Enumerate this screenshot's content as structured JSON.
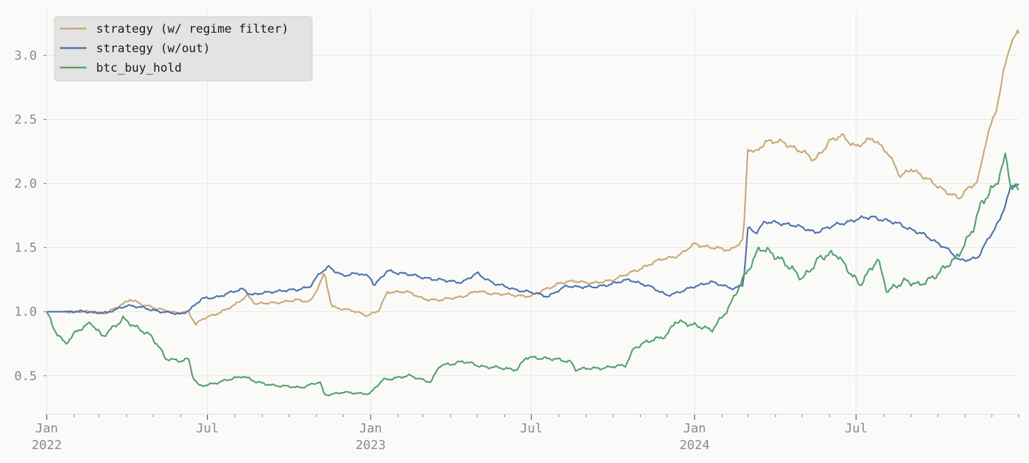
{
  "chart_data": {
    "type": "line",
    "title": "",
    "xlabel": "",
    "ylabel": "",
    "x_range": [
      "2022-01-01",
      "2024-12-31"
    ],
    "ylim": [
      0.2,
      3.35
    ],
    "grid": true,
    "legend_position": "top-left",
    "y_ticks": [
      0.5,
      1.0,
      1.5,
      2.0,
      2.5,
      3.0
    ],
    "y_tick_labels": [
      "0.5",
      "1.0",
      "1.5",
      "2.0",
      "2.5",
      "3.0"
    ],
    "x_major_ticks": [
      {
        "date": "2022-01-01",
        "line1": "Jan",
        "line2": "2022"
      },
      {
        "date": "2022-07-01",
        "line1": "Jul",
        "line2": ""
      },
      {
        "date": "2023-01-01",
        "line1": "Jan",
        "line2": "2023"
      },
      {
        "date": "2023-07-01",
        "line1": "Jul",
        "line2": ""
      },
      {
        "date": "2024-01-01",
        "line1": "Jan",
        "line2": "2024"
      },
      {
        "date": "2024-07-01",
        "line1": "Jul",
        "line2": ""
      }
    ],
    "series": [
      {
        "name": "strategy (w/ regime filter)",
        "color": "#c9a874",
        "points": [
          [
            "2022-01-01",
            1.0
          ],
          [
            "2022-02-15",
            1.0
          ],
          [
            "2022-03-10",
            0.99
          ],
          [
            "2022-03-28",
            1.06
          ],
          [
            "2022-04-05",
            1.1
          ],
          [
            "2022-04-20",
            1.05
          ],
          [
            "2022-05-10",
            1.02
          ],
          [
            "2022-05-25",
            0.99
          ],
          [
            "2022-06-10",
            1.0
          ],
          [
            "2022-06-18",
            0.9
          ],
          [
            "2022-06-25",
            0.94
          ],
          [
            "2022-07-10",
            0.98
          ],
          [
            "2022-08-01",
            1.05
          ],
          [
            "2022-08-15",
            1.13
          ],
          [
            "2022-08-25",
            1.06
          ],
          [
            "2022-09-15",
            1.07
          ],
          [
            "2022-10-10",
            1.09
          ],
          [
            "2022-10-25",
            1.08
          ],
          [
            "2022-11-05",
            1.22
          ],
          [
            "2022-11-10",
            1.3
          ],
          [
            "2022-11-18",
            1.04
          ],
          [
            "2022-12-10",
            1.01
          ],
          [
            "2022-12-28",
            0.97
          ],
          [
            "2023-01-10",
            1.01
          ],
          [
            "2023-01-20",
            1.15
          ],
          [
            "2023-02-10",
            1.16
          ],
          [
            "2023-03-01",
            1.1
          ],
          [
            "2023-03-20",
            1.09
          ],
          [
            "2023-04-15",
            1.12
          ],
          [
            "2023-05-01",
            1.16
          ],
          [
            "2023-05-20",
            1.14
          ],
          [
            "2023-06-10",
            1.13
          ],
          [
            "2023-07-01",
            1.12
          ],
          [
            "2023-07-15",
            1.17
          ],
          [
            "2023-08-01",
            1.22
          ],
          [
            "2023-08-20",
            1.24
          ],
          [
            "2023-09-10",
            1.22
          ],
          [
            "2023-10-01",
            1.25
          ],
          [
            "2023-10-20",
            1.3
          ],
          [
            "2023-11-05",
            1.35
          ],
          [
            "2023-11-25",
            1.41
          ],
          [
            "2023-12-15",
            1.44
          ],
          [
            "2024-01-01",
            1.53
          ],
          [
            "2024-01-20",
            1.5
          ],
          [
            "2024-02-10",
            1.48
          ],
          [
            "2024-02-25",
            1.56
          ],
          [
            "2024-03-01",
            2.27
          ],
          [
            "2024-03-10",
            2.24
          ],
          [
            "2024-03-20",
            2.33
          ],
          [
            "2024-04-10",
            2.32
          ],
          [
            "2024-05-01",
            2.25
          ],
          [
            "2024-05-15",
            2.18
          ],
          [
            "2024-06-01",
            2.33
          ],
          [
            "2024-06-15",
            2.37
          ],
          [
            "2024-07-01",
            2.29
          ],
          [
            "2024-07-20",
            2.35
          ],
          [
            "2024-08-05",
            2.25
          ],
          [
            "2024-08-20",
            2.05
          ],
          [
            "2024-09-01",
            2.12
          ],
          [
            "2024-09-15",
            2.05
          ],
          [
            "2024-10-01",
            1.98
          ],
          [
            "2024-10-15",
            1.92
          ],
          [
            "2024-10-25",
            1.88
          ],
          [
            "2024-11-05",
            1.97
          ],
          [
            "2024-11-15",
            2.02
          ],
          [
            "2024-11-25",
            2.35
          ],
          [
            "2024-12-05",
            2.55
          ],
          [
            "2024-12-15",
            2.9
          ],
          [
            "2024-12-22",
            3.1
          ],
          [
            "2024-12-31",
            3.17
          ]
        ]
      },
      {
        "name": "strategy (w/out)",
        "color": "#4c72b0",
        "points": [
          [
            "2022-01-01",
            1.0
          ],
          [
            "2022-02-15",
            1.0
          ],
          [
            "2022-03-10",
            0.99
          ],
          [
            "2022-04-01",
            1.05
          ],
          [
            "2022-04-20",
            1.03
          ],
          [
            "2022-05-10",
            1.0
          ],
          [
            "2022-06-01",
            0.98
          ],
          [
            "2022-06-12",
            1.02
          ],
          [
            "2022-06-25",
            1.1
          ],
          [
            "2022-07-15",
            1.12
          ],
          [
            "2022-08-10",
            1.18
          ],
          [
            "2022-08-20",
            1.13
          ],
          [
            "2022-09-15",
            1.16
          ],
          [
            "2022-10-10",
            1.17
          ],
          [
            "2022-10-25",
            1.2
          ],
          [
            "2022-11-05",
            1.3
          ],
          [
            "2022-11-15",
            1.35
          ],
          [
            "2022-12-01",
            1.28
          ],
          [
            "2022-12-20",
            1.3
          ],
          [
            "2023-01-01",
            1.27
          ],
          [
            "2023-01-05",
            1.2
          ],
          [
            "2023-01-20",
            1.32
          ],
          [
            "2023-02-20",
            1.28
          ],
          [
            "2023-03-15",
            1.25
          ],
          [
            "2023-04-15",
            1.23
          ],
          [
            "2023-05-01",
            1.3
          ],
          [
            "2023-05-20",
            1.22
          ],
          [
            "2023-06-15",
            1.17
          ],
          [
            "2023-07-01",
            1.15
          ],
          [
            "2023-07-20",
            1.12
          ],
          [
            "2023-08-10",
            1.2
          ],
          [
            "2023-09-10",
            1.19
          ],
          [
            "2023-10-01",
            1.22
          ],
          [
            "2023-10-20",
            1.25
          ],
          [
            "2023-11-10",
            1.2
          ],
          [
            "2023-12-01",
            1.13
          ],
          [
            "2023-12-15",
            1.15
          ],
          [
            "2024-01-01",
            1.2
          ],
          [
            "2024-01-20",
            1.23
          ],
          [
            "2024-02-15",
            1.18
          ],
          [
            "2024-02-25",
            1.21
          ],
          [
            "2024-03-01",
            1.65
          ],
          [
            "2024-03-10",
            1.62
          ],
          [
            "2024-03-20",
            1.7
          ],
          [
            "2024-04-20",
            1.68
          ],
          [
            "2024-05-15",
            1.62
          ],
          [
            "2024-06-10",
            1.68
          ],
          [
            "2024-07-01",
            1.72
          ],
          [
            "2024-07-20",
            1.74
          ],
          [
            "2024-08-20",
            1.68
          ],
          [
            "2024-09-15",
            1.6
          ],
          [
            "2024-10-10",
            1.5
          ],
          [
            "2024-10-25",
            1.4
          ],
          [
            "2024-11-15",
            1.42
          ],
          [
            "2024-11-28",
            1.58
          ],
          [
            "2024-12-10",
            1.72
          ],
          [
            "2024-12-22",
            1.96
          ],
          [
            "2024-12-31",
            2.0
          ]
        ]
      },
      {
        "name": "btc_buy_hold",
        "color": "#55a06e",
        "points": [
          [
            "2022-01-01",
            1.0
          ],
          [
            "2022-01-08",
            0.88
          ],
          [
            "2022-01-22",
            0.75
          ],
          [
            "2022-02-05",
            0.85
          ],
          [
            "2022-02-20",
            0.92
          ],
          [
            "2022-03-05",
            0.8
          ],
          [
            "2022-03-28",
            0.95
          ],
          [
            "2022-04-10",
            0.88
          ],
          [
            "2022-04-28",
            0.82
          ],
          [
            "2022-05-08",
            0.72
          ],
          [
            "2022-05-15",
            0.63
          ],
          [
            "2022-06-01",
            0.62
          ],
          [
            "2022-06-10",
            0.63
          ],
          [
            "2022-06-15",
            0.48
          ],
          [
            "2022-06-22",
            0.42
          ],
          [
            "2022-07-15",
            0.45
          ],
          [
            "2022-08-10",
            0.5
          ],
          [
            "2022-08-25",
            0.45
          ],
          [
            "2022-09-20",
            0.42
          ],
          [
            "2022-10-15",
            0.41
          ],
          [
            "2022-11-05",
            0.45
          ],
          [
            "2022-11-10",
            0.35
          ],
          [
            "2022-12-01",
            0.37
          ],
          [
            "2022-12-31",
            0.36
          ],
          [
            "2023-01-15",
            0.47
          ],
          [
            "2023-02-15",
            0.5
          ],
          [
            "2023-03-10",
            0.45
          ],
          [
            "2023-03-20",
            0.58
          ],
          [
            "2023-04-15",
            0.61
          ],
          [
            "2023-05-10",
            0.57
          ],
          [
            "2023-06-15",
            0.55
          ],
          [
            "2023-06-25",
            0.64
          ],
          [
            "2023-07-15",
            0.64
          ],
          [
            "2023-08-15",
            0.61
          ],
          [
            "2023-08-20",
            0.55
          ],
          [
            "2023-09-15",
            0.56
          ],
          [
            "2023-10-15",
            0.58
          ],
          [
            "2023-10-25",
            0.72
          ],
          [
            "2023-11-15",
            0.78
          ],
          [
            "2023-12-01",
            0.82
          ],
          [
            "2023-12-10",
            0.92
          ],
          [
            "2024-01-01",
            0.9
          ],
          [
            "2024-01-20",
            0.85
          ],
          [
            "2024-02-10",
            1.05
          ],
          [
            "2024-02-28",
            1.3
          ],
          [
            "2024-03-14",
            1.5
          ],
          [
            "2024-04-10",
            1.4
          ],
          [
            "2024-05-01",
            1.25
          ],
          [
            "2024-05-20",
            1.42
          ],
          [
            "2024-06-10",
            1.45
          ],
          [
            "2024-07-05",
            1.2
          ],
          [
            "2024-07-25",
            1.42
          ],
          [
            "2024-08-05",
            1.15
          ],
          [
            "2024-08-25",
            1.25
          ],
          [
            "2024-09-10",
            1.2
          ],
          [
            "2024-10-01",
            1.3
          ],
          [
            "2024-10-20",
            1.4
          ],
          [
            "2024-11-10",
            1.65
          ],
          [
            "2024-11-20",
            1.85
          ],
          [
            "2024-12-05",
            2.0
          ],
          [
            "2024-12-17",
            2.2
          ],
          [
            "2024-12-22",
            1.98
          ],
          [
            "2024-12-31",
            1.95
          ]
        ]
      }
    ]
  }
}
